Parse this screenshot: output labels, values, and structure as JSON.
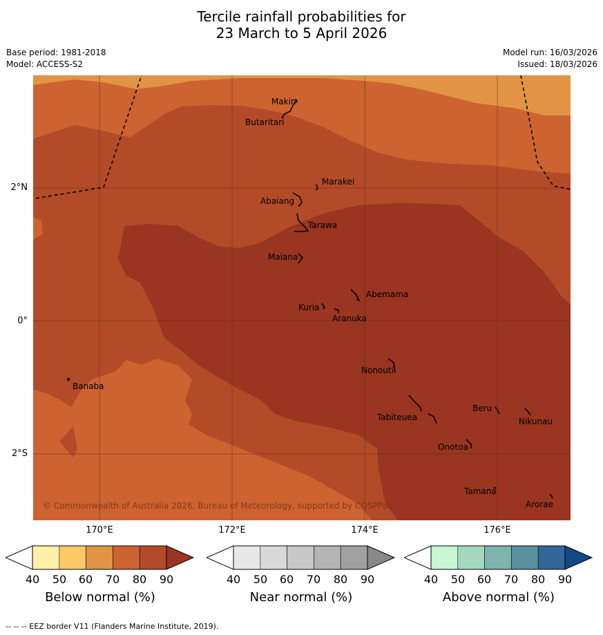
{
  "title": {
    "line1": "Tercile rainfall probabilities for",
    "line2": "23 March to 5 April 2026"
  },
  "meta": {
    "base_period": "Base period: 1981-2018",
    "model": "Model: ACCESS-S2",
    "model_run": "Model run: 16/03/2026",
    "issued": "Issued: 18/03/2026"
  },
  "map": {
    "latitude_labels": [
      "2°N",
      "0°",
      "2°S"
    ],
    "longitude_labels": [
      "170°E",
      "172°E",
      "174°E",
      "176°E"
    ],
    "places": [
      "Makin",
      "Butaritari",
      "Marakei",
      "Abaiang",
      "Tarawa",
      "Maiana",
      "Abemama",
      "Kuria",
      "Aranuka",
      "Nonouti",
      "Banaba",
      "Beru",
      "Tabiteuea",
      "Nikunau",
      "Onotoa",
      "Tamana",
      "Arorae"
    ],
    "copyright": "© Commonwealth of Australia 2026, Bureau of Meteorology, supported by COSPPac"
  },
  "legend": {
    "ticks": [
      "40",
      "50",
      "60",
      "70",
      "80",
      "90"
    ],
    "below": {
      "title": "Below normal (%)",
      "colors": [
        "#fff0a8",
        "#fec966",
        "#e09444",
        "#cc6330",
        "#b34b28",
        "#993520"
      ]
    },
    "near": {
      "title": "Near normal (%)",
      "colors": [
        "#e8e8e8",
        "#d9d9d9",
        "#c8c8c8",
        "#b4b4b4",
        "#a0a0a0",
        "#888888"
      ]
    },
    "above": {
      "title": "Above normal (%)",
      "colors": [
        "#c8f5d2",
        "#a4d9bf",
        "#7fb4ae",
        "#5a8fa0",
        "#33669a",
        "#124a85"
      ]
    }
  },
  "footer": "--  --  -- EEZ border V11 (Flanders Marine Institute, 2019)."
}
